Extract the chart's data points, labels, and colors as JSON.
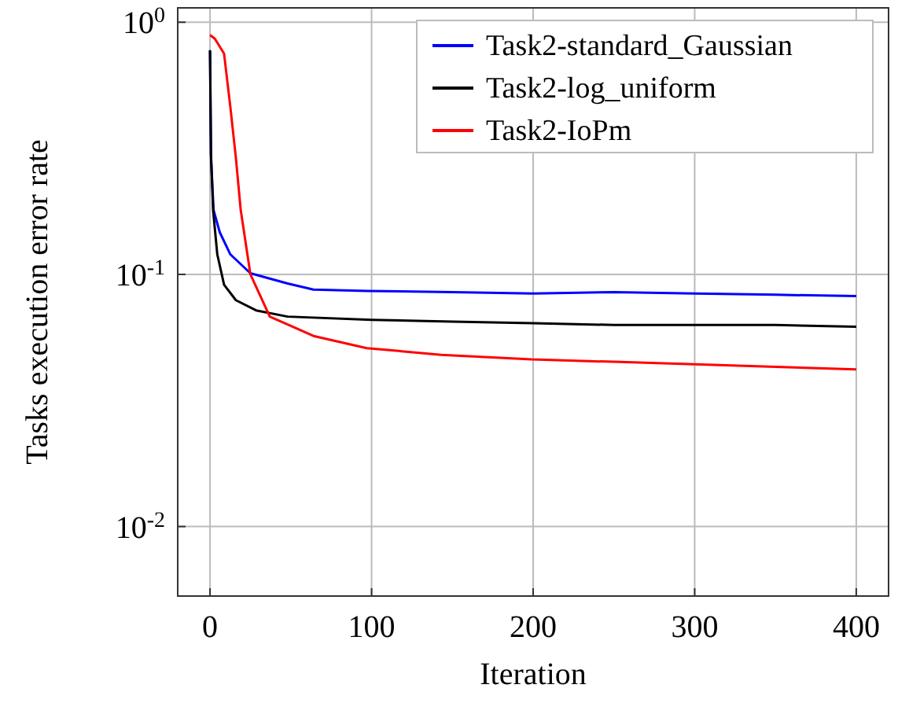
{
  "chart_data": {
    "type": "line",
    "xlabel": "Iteration",
    "ylabel": "Tasks execution error rate",
    "log": "y",
    "grid": true,
    "legend": "top right",
    "line_style": "solid",
    "xlim": [
      -20,
      420
    ],
    "xticks": [
      0,
      100,
      200,
      300,
      400
    ],
    "ylim": [
      0.0053,
      1.14
    ],
    "yticks": [
      {
        "value": 1,
        "label": "10$^{0}$"
      },
      {
        "value": 0.1,
        "label": "10$^{-1}$"
      },
      {
        "value": 0.01,
        "label": "10$^{-2}$"
      }
    ],
    "series": [
      {
        "name": "Task2-standard_Gaussian",
        "color": "#0000ff",
        "x": [
          0,
          0.6,
          2.2,
          6,
          12.6,
          25,
          48,
          64,
          97,
          150,
          200,
          250,
          300,
          350,
          400
        ],
        "values": [
          0.77,
          0.29,
          0.18,
          0.147,
          0.12,
          0.101,
          0.092,
          0.087,
          0.086,
          0.085,
          0.084,
          0.085,
          0.084,
          0.083,
          0.082
        ]
      },
      {
        "name": "Task2-log_uniform",
        "color": "#000000",
        "x": [
          0,
          0.6,
          1.9,
          4.5,
          8.7,
          16,
          28.5,
          48,
          100,
          150,
          200,
          250,
          300,
          350,
          400
        ],
        "values": [
          0.775,
          0.3,
          0.18,
          0.12,
          0.091,
          0.079,
          0.072,
          0.068,
          0.066,
          0.065,
          0.064,
          0.063,
          0.063,
          0.063,
          0.062
        ]
      },
      {
        "name": "Task2-IoPm",
        "color": "#ff0000",
        "x": [
          0,
          3,
          8.7,
          12.6,
          16,
          19,
          25,
          37,
          64,
          97,
          143,
          199,
          250,
          300,
          350,
          400
        ],
        "values": [
          0.89,
          0.86,
          0.75,
          0.46,
          0.29,
          0.18,
          0.1,
          0.068,
          0.057,
          0.051,
          0.048,
          0.046,
          0.045,
          0.044,
          0.043,
          0.042
        ]
      }
    ]
  }
}
